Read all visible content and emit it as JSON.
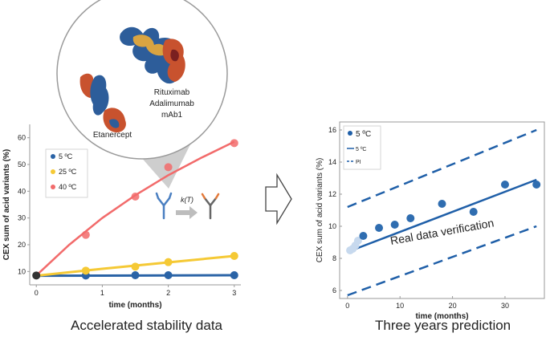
{
  "captions": {
    "left": "Accelerated stability  data",
    "right": "Three years prediction"
  },
  "molecule_labels": [
    "Rituximab",
    "Adalimumab",
    "mAb1",
    "Etanercept"
  ],
  "reaction_label": "k(T)",
  "verification_label": "Real data verification",
  "chart_data": [
    {
      "type": "scatter",
      "xlabel": "time (months)",
      "ylabel": "CEX sum of acid variants (%)",
      "xlim": [
        -0.1,
        3.1
      ],
      "ylim": [
        5,
        65
      ],
      "xticks": [
        0,
        1,
        2,
        3
      ],
      "yticks": [
        10,
        20,
        30,
        40,
        50,
        60
      ],
      "grid": false,
      "legend": "top-left",
      "series": [
        {
          "name": "5 ºC",
          "color": "#2a63a6",
          "x": [
            0,
            0.75,
            1.5,
            2,
            3
          ],
          "y": [
            8.5,
            8.5,
            8.6,
            8.6,
            8.6
          ],
          "fit_x": [
            0,
            3
          ],
          "fit_y": [
            8.4,
            8.6
          ]
        },
        {
          "name": "25 ºC",
          "color": "#f5c935",
          "x": [
            0,
            0.75,
            1.5,
            2,
            3
          ],
          "y": [
            8.5,
            10.3,
            11.8,
            13.5,
            15.8
          ],
          "fit_x": [
            0,
            1,
            2,
            3
          ],
          "fit_y": [
            8.4,
            11,
            13.4,
            15.8
          ]
        },
        {
          "name": "40 ºC",
          "color": "#f26b6b",
          "x": [
            0,
            0.75,
            1.5,
            2,
            3
          ],
          "y": [
            8.5,
            23.7,
            38,
            49,
            58
          ],
          "fit_x": [
            0,
            0.5,
            1,
            1.5,
            2,
            2.5,
            3
          ],
          "fit_y": [
            8.5,
            20,
            30,
            38.5,
            46,
            52.5,
            58.5
          ]
        }
      ]
    },
    {
      "type": "scatter",
      "xlabel": "time (months)",
      "ylabel": "CEX sum of acid variants (%)",
      "xlim": [
        -1.5,
        37.5
      ],
      "ylim": [
        5.5,
        16.5
      ],
      "xticks": [
        0,
        10,
        20,
        30
      ],
      "yticks": [
        6,
        8,
        10,
        12,
        14,
        16
      ],
      "grid": false,
      "legend": "top-left",
      "legend_entries": [
        "5 ºC",
        "5 ºC",
        "PI"
      ],
      "points": {
        "color": "#2f6db0",
        "x": [
          0,
          3,
          6,
          9,
          12,
          18,
          24,
          30,
          36
        ],
        "y": [
          8.6,
          9.4,
          9.9,
          10.1,
          10.5,
          11.4,
          10.9,
          12.6,
          12.6
        ]
      },
      "early_points": {
        "color": "#c7d9ee",
        "x": [
          0.5,
          1,
          1.5,
          2
        ],
        "y": [
          8.5,
          8.6,
          8.8,
          9.1
        ]
      },
      "fit": {
        "x": [
          0,
          36
        ],
        "y": [
          8.4,
          12.9
        ]
      },
      "pi_upper": {
        "x": [
          0,
          36
        ],
        "y": [
          11.2,
          16
        ]
      },
      "pi_lower": {
        "x": [
          0,
          36
        ],
        "y": [
          5.7,
          10
        ]
      }
    }
  ]
}
